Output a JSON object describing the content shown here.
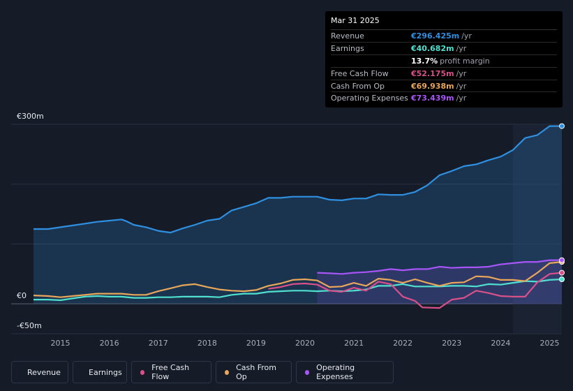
{
  "tooltip": {
    "date": "Mar 31 2025",
    "rows": [
      {
        "label": "Revenue",
        "value": "€296.425m",
        "unit": "/yr",
        "color": "#2f8fe0"
      },
      {
        "label": "Earnings",
        "value": "€40.682m",
        "unit": "/yr",
        "color": "#4fe0d0"
      },
      {
        "label": "",
        "value": "13.7%",
        "unit": "profit margin",
        "color": "#ffffff"
      },
      {
        "label": "Free Cash Flow",
        "value": "€52.175m",
        "unit": "/yr",
        "color": "#d9508a"
      },
      {
        "label": "Cash From Op",
        "value": "€69.938m",
        "unit": "/yr",
        "color": "#e8a75a"
      },
      {
        "label": "Operating Expenses",
        "value": "€73.439m",
        "unit": "/yr",
        "color": "#a855f7"
      }
    ]
  },
  "legend": [
    {
      "label": "Revenue",
      "color": "#2f8fe0"
    },
    {
      "label": "Earnings",
      "color": "#4fe0d0"
    },
    {
      "label": "Free Cash Flow",
      "color": "#d9508a"
    },
    {
      "label": "Cash From Op",
      "color": "#e8a75a"
    },
    {
      "label": "Operating Expenses",
      "color": "#a855f7"
    }
  ],
  "chart_data": {
    "type": "area",
    "title": "",
    "xlabel": "",
    "ylabel": "",
    "ylim": [
      -50,
      300
    ],
    "xlim": [
      2014.45,
      2025.25
    ],
    "y_tick_labels": [
      {
        "value": 300,
        "label": "€300m"
      },
      {
        "value": 0,
        "label": "€0"
      },
      {
        "value": -50,
        "label": "-€50m"
      }
    ],
    "x_tick_labels": [
      "2015",
      "2016",
      "2017",
      "2018",
      "2019",
      "2020",
      "2021",
      "2022",
      "2023",
      "2024",
      "2025"
    ],
    "x_ticks": [
      2015,
      2016,
      2017,
      2018,
      2019,
      2020,
      2021,
      2022,
      2023,
      2024,
      2025
    ],
    "highlight_from": 2024.25,
    "series": [
      {
        "name": "Revenue",
        "color": "#2f8fe0",
        "fill": true,
        "points": [
          [
            2014.45,
            125
          ],
          [
            2014.75,
            125
          ],
          [
            2015,
            128
          ],
          [
            2015.25,
            131
          ],
          [
            2015.5,
            134
          ],
          [
            2015.75,
            137
          ],
          [
            2016,
            139
          ],
          [
            2016.25,
            141
          ],
          [
            2016.35,
            138
          ],
          [
            2016.5,
            132
          ],
          [
            2016.75,
            128
          ],
          [
            2017,
            122
          ],
          [
            2017.25,
            119
          ],
          [
            2017.5,
            126
          ],
          [
            2017.75,
            132
          ],
          [
            2018,
            139
          ],
          [
            2018.25,
            142
          ],
          [
            2018.5,
            156
          ],
          [
            2018.75,
            162
          ],
          [
            2019,
            168
          ],
          [
            2019.25,
            177
          ],
          [
            2019.5,
            177
          ],
          [
            2019.75,
            179
          ],
          [
            2020,
            179
          ],
          [
            2020.25,
            179
          ],
          [
            2020.5,
            174
          ],
          [
            2020.75,
            173
          ],
          [
            2021,
            176
          ],
          [
            2021.25,
            176
          ],
          [
            2021.5,
            183
          ],
          [
            2021.75,
            182
          ],
          [
            2022,
            182
          ],
          [
            2022.25,
            187
          ],
          [
            2022.5,
            198
          ],
          [
            2022.75,
            215
          ],
          [
            2023,
            222
          ],
          [
            2023.25,
            230
          ],
          [
            2023.5,
            233
          ],
          [
            2023.75,
            240
          ],
          [
            2024,
            246
          ],
          [
            2024.25,
            257
          ],
          [
            2024.5,
            277
          ],
          [
            2024.75,
            282
          ],
          [
            2025,
            297
          ],
          [
            2025.25,
            297
          ]
        ]
      },
      {
        "name": "Earnings",
        "color": "#4fe0d0",
        "fill": false,
        "points": [
          [
            2014.45,
            7
          ],
          [
            2014.75,
            7
          ],
          [
            2015,
            6
          ],
          [
            2015.25,
            9
          ],
          [
            2015.5,
            12
          ],
          [
            2015.75,
            13
          ],
          [
            2016,
            12
          ],
          [
            2016.25,
            12
          ],
          [
            2016.5,
            10
          ],
          [
            2016.75,
            10
          ],
          [
            2017,
            11
          ],
          [
            2017.25,
            11
          ],
          [
            2017.5,
            12
          ],
          [
            2017.75,
            12
          ],
          [
            2018,
            12
          ],
          [
            2018.25,
            11
          ],
          [
            2018.5,
            15
          ],
          [
            2018.75,
            17
          ],
          [
            2019,
            17
          ],
          [
            2019.25,
            20
          ],
          [
            2019.5,
            21
          ],
          [
            2019.75,
            22
          ],
          [
            2020,
            22
          ],
          [
            2020.25,
            21
          ],
          [
            2020.5,
            22
          ],
          [
            2020.75,
            21
          ],
          [
            2021,
            22
          ],
          [
            2021.25,
            24
          ],
          [
            2021.5,
            30
          ],
          [
            2021.75,
            30
          ],
          [
            2022,
            33
          ],
          [
            2022.25,
            29
          ],
          [
            2022.5,
            29
          ],
          [
            2022.75,
            29
          ],
          [
            2023,
            30
          ],
          [
            2023.25,
            30
          ],
          [
            2023.5,
            29
          ],
          [
            2023.75,
            33
          ],
          [
            2024,
            32
          ],
          [
            2024.25,
            35
          ],
          [
            2024.5,
            38
          ],
          [
            2024.75,
            37
          ],
          [
            2025,
            40
          ],
          [
            2025.25,
            41
          ]
        ]
      },
      {
        "name": "Free Cash Flow",
        "color": "#d9508a",
        "fill": false,
        "points": [
          [
            2019.25,
            25
          ],
          [
            2019.5,
            28
          ],
          [
            2019.75,
            33
          ],
          [
            2020,
            34
          ],
          [
            2020.25,
            32
          ],
          [
            2020.5,
            22
          ],
          [
            2020.75,
            20
          ],
          [
            2021,
            27
          ],
          [
            2021.25,
            22
          ],
          [
            2021.5,
            37
          ],
          [
            2021.75,
            33
          ],
          [
            2022,
            12
          ],
          [
            2022.25,
            5
          ],
          [
            2022.4,
            -6
          ],
          [
            2022.75,
            -7
          ],
          [
            2023,
            7
          ],
          [
            2023.25,
            10
          ],
          [
            2023.5,
            22
          ],
          [
            2023.75,
            18
          ],
          [
            2024,
            13
          ],
          [
            2024.25,
            12
          ],
          [
            2024.5,
            12
          ],
          [
            2024.75,
            36
          ],
          [
            2025,
            50
          ],
          [
            2025.25,
            52
          ]
        ]
      },
      {
        "name": "Cash From Op",
        "color": "#e8a75a",
        "fill": false,
        "points": [
          [
            2014.45,
            14
          ],
          [
            2014.75,
            13
          ],
          [
            2015,
            11
          ],
          [
            2015.25,
            13
          ],
          [
            2015.5,
            15
          ],
          [
            2015.75,
            17
          ],
          [
            2016,
            17
          ],
          [
            2016.25,
            17
          ],
          [
            2016.5,
            15
          ],
          [
            2016.75,
            15
          ],
          [
            2017,
            21
          ],
          [
            2017.25,
            26
          ],
          [
            2017.5,
            31
          ],
          [
            2017.75,
            33
          ],
          [
            2018,
            28
          ],
          [
            2018.25,
            24
          ],
          [
            2018.5,
            22
          ],
          [
            2018.75,
            21
          ],
          [
            2019,
            23
          ],
          [
            2019.25,
            30
          ],
          [
            2019.5,
            34
          ],
          [
            2019.75,
            40
          ],
          [
            2020,
            41
          ],
          [
            2020.25,
            39
          ],
          [
            2020.5,
            28
          ],
          [
            2020.75,
            29
          ],
          [
            2021,
            35
          ],
          [
            2021.25,
            30
          ],
          [
            2021.5,
            42
          ],
          [
            2021.75,
            40
          ],
          [
            2022,
            35
          ],
          [
            2022.25,
            41
          ],
          [
            2022.5,
            35
          ],
          [
            2022.75,
            30
          ],
          [
            2023,
            35
          ],
          [
            2023.25,
            36
          ],
          [
            2023.5,
            46
          ],
          [
            2023.75,
            45
          ],
          [
            2024,
            40
          ],
          [
            2024.25,
            40
          ],
          [
            2024.5,
            38
          ],
          [
            2024.75,
            52
          ],
          [
            2025,
            68
          ],
          [
            2025.25,
            70
          ]
        ]
      },
      {
        "name": "Operating Expenses",
        "color": "#a855f7",
        "fill": true,
        "points": [
          [
            2020.25,
            52
          ],
          [
            2020.5,
            51
          ],
          [
            2020.75,
            50
          ],
          [
            2021,
            52
          ],
          [
            2021.25,
            53
          ],
          [
            2021.5,
            55
          ],
          [
            2021.75,
            58
          ],
          [
            2022,
            56
          ],
          [
            2022.25,
            58
          ],
          [
            2022.5,
            58
          ],
          [
            2022.75,
            62
          ],
          [
            2023,
            60
          ],
          [
            2023.25,
            61
          ],
          [
            2023.5,
            61
          ],
          [
            2023.75,
            62
          ],
          [
            2024,
            66
          ],
          [
            2024.25,
            68
          ],
          [
            2024.5,
            70
          ],
          [
            2024.75,
            70
          ],
          [
            2025,
            73
          ],
          [
            2025.25,
            73
          ]
        ]
      }
    ]
  }
}
